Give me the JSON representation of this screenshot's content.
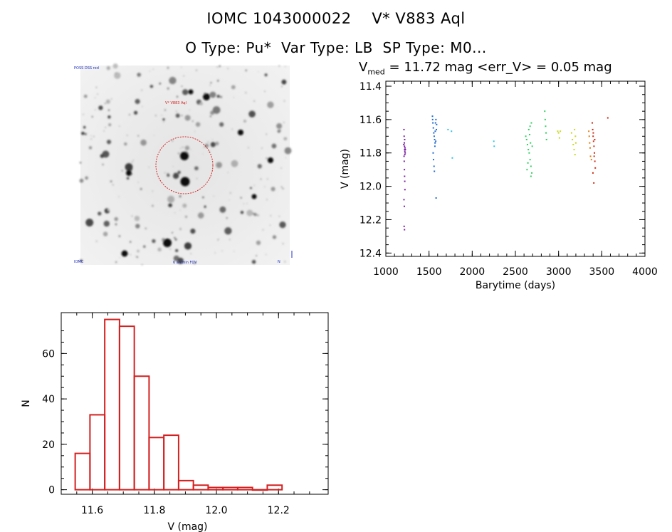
{
  "header": {
    "title_line1": "IOMC 1043000022    V* V883 Aql",
    "title_line2": "O Type: Pu*  Var Type: LB  SP Type: M0...",
    "lc_heading_main": "V",
    "lc_heading_sub": "med",
    "lc_heading_rest": " = 11.72 mag <err_V> = 0.05 mag"
  },
  "finder_image": {
    "label_top_left": "POSS DSS red",
    "label_target": "V* V883 Aql",
    "label_bottom_left": "IOMC",
    "label_bottom_center": "6 arcmin FOV",
    "label_bottom_right": "N",
    "colors": {
      "target_circle": "#d42020",
      "labels": "#2030c0"
    }
  },
  "chart_data": [
    {
      "type": "scatter",
      "title": "",
      "xlabel": "Barytime (days)",
      "ylabel": "V (mag)",
      "xlim": [
        1000,
        4000
      ],
      "ylim": [
        12.42,
        11.37
      ],
      "y_inverted": true,
      "xticks": [
        1000,
        1500,
        2000,
        2500,
        3000,
        3500,
        4000
      ],
      "yticks": [
        11.4,
        11.6,
        11.8,
        12.0,
        12.2,
        12.4
      ],
      "color_scale": "rainbow by time",
      "series": [
        {
          "color": "#7a1fa0",
          "points": [
            [
              1210,
              11.66
            ],
            [
              1212,
              11.7
            ],
            [
              1214,
              11.74
            ],
            [
              1216,
              11.76
            ],
            [
              1218,
              11.78
            ],
            [
              1220,
              11.79
            ],
            [
              1211,
              11.82
            ],
            [
              1213,
              11.85
            ],
            [
              1215,
              11.9
            ],
            [
              1217,
              11.94
            ],
            [
              1219,
              11.97
            ],
            [
              1221,
              12.02
            ],
            [
              1210,
              12.08
            ],
            [
              1214,
              12.12
            ],
            [
              1212,
              12.24
            ],
            [
              1216,
              12.26
            ],
            [
              1222,
              11.77
            ],
            [
              1224,
              11.8
            ],
            [
              1208,
              11.75
            ],
            [
              1218,
              11.72
            ],
            [
              1226,
              11.78
            ],
            [
              1220,
              11.81
            ]
          ]
        },
        {
          "color": "#1f6ad0",
          "points": [
            [
              1540,
              11.58
            ],
            [
              1545,
              11.62
            ],
            [
              1550,
              11.65
            ],
            [
              1555,
              11.68
            ],
            [
              1560,
              11.7
            ],
            [
              1565,
              11.72
            ],
            [
              1570,
              11.74
            ],
            [
              1575,
              11.62
            ],
            [
              1580,
              11.6
            ],
            [
              1585,
              11.66
            ],
            [
              1548,
              11.8
            ],
            [
              1552,
              11.84
            ],
            [
              1558,
              11.88
            ],
            [
              1562,
              11.91
            ],
            [
              1568,
              11.76
            ],
            [
              1578,
              11.73
            ],
            [
              1582,
              12.07
            ],
            [
              1572,
              11.67
            ],
            [
              1542,
              11.6
            ],
            [
              1588,
              11.63
            ]
          ]
        },
        {
          "color": "#30c0e0",
          "points": [
            [
              1720,
              11.66
            ],
            [
              1760,
              11.67
            ],
            [
              1770,
              11.83
            ],
            [
              2250,
              11.73
            ],
            [
              2255,
              11.76
            ]
          ]
        },
        {
          "color": "#30d060",
          "points": [
            [
              2620,
              11.7
            ],
            [
              2630,
              11.72
            ],
            [
              2640,
              11.75
            ],
            [
              2650,
              11.78
            ],
            [
              2660,
              11.8
            ],
            [
              2670,
              11.84
            ],
            [
              2680,
              11.88
            ],
            [
              2690,
              11.92
            ],
            [
              2655,
              11.66
            ],
            [
              2665,
              11.69
            ],
            [
              2675,
              11.74
            ],
            [
              2685,
              11.62
            ],
            [
              2645,
              11.86
            ],
            [
              2635,
              11.9
            ],
            [
              2695,
              11.76
            ],
            [
              2670,
              11.64
            ],
            [
              2680,
              11.94
            ],
            [
              2840,
              11.55
            ],
            [
              2845,
              11.6
            ],
            [
              2850,
              11.64
            ],
            [
              2855,
              11.68
            ],
            [
              2860,
              11.72
            ]
          ]
        },
        {
          "color": "#c8d820",
          "points": [
            [
              2990,
              11.67
            ],
            [
              3000,
              11.68
            ],
            [
              3010,
              11.71
            ],
            [
              3020,
              11.67
            ],
            [
              3150,
              11.68
            ],
            [
              3160,
              11.72
            ],
            [
              3170,
              11.75
            ],
            [
              3180,
              11.78
            ],
            [
              3190,
              11.81
            ],
            [
              3200,
              11.74
            ],
            [
              3185,
              11.66
            ],
            [
              3195,
              11.7
            ]
          ]
        },
        {
          "color": "#e07a10",
          "points": [
            [
              3350,
              11.67
            ],
            [
              3360,
              11.74
            ],
            [
              3370,
              11.82
            ],
            [
              3380,
              11.84
            ],
            [
              3355,
              11.7
            ],
            [
              3365,
              11.77
            ]
          ]
        },
        {
          "color": "#d02a10",
          "points": [
            [
              3390,
              11.62
            ],
            [
              3395,
              11.66
            ],
            [
              3400,
              11.7
            ],
            [
              3405,
              11.73
            ],
            [
              3410,
              11.76
            ],
            [
              3415,
              11.8
            ],
            [
              3420,
              11.85
            ],
            [
              3425,
              11.89
            ],
            [
              3398,
              11.92
            ],
            [
              3408,
              11.98
            ],
            [
              3418,
              11.72
            ],
            [
              3402,
              11.68
            ],
            [
              3412,
              11.82
            ],
            [
              3570,
              11.59
            ]
          ]
        }
      ]
    },
    {
      "type": "bar",
      "title": "",
      "xlabel": "V (mag)",
      "ylabel": "N",
      "xlim": [
        11.5,
        12.36
      ],
      "ylim": [
        -2,
        78
      ],
      "xticks": [
        11.6,
        11.8,
        12.0,
        12.2
      ],
      "yticks": [
        0,
        20,
        40,
        60
      ],
      "bin_width": 0.0476,
      "bin_start": 11.545,
      "counts": [
        16,
        33,
        75,
        72,
        50,
        23,
        24,
        4,
        2,
        1,
        1,
        1,
        0,
        2
      ],
      "color": "#d42020"
    }
  ]
}
